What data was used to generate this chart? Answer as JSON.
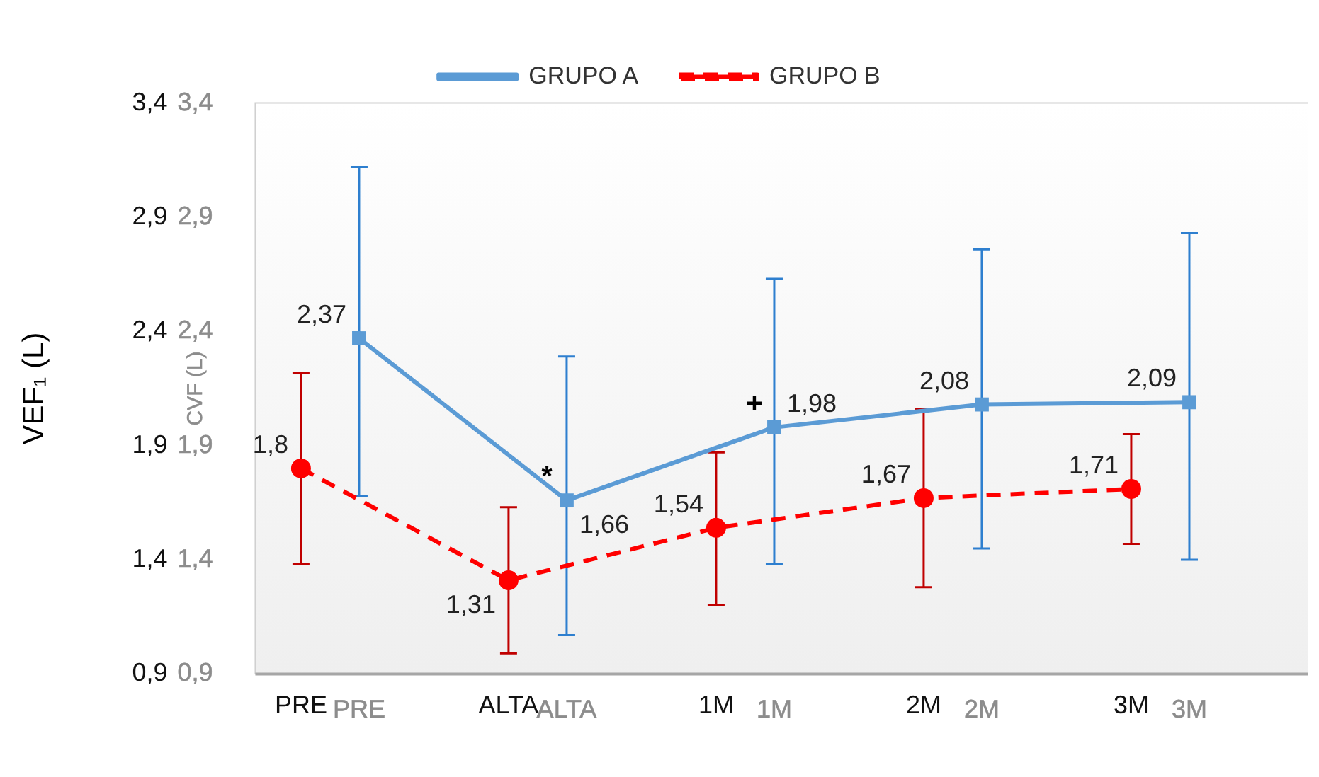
{
  "chart_data": {
    "type": "line",
    "ylabel": "VEF₁ (L)",
    "y2label": "CVF (L)",
    "categories": [
      "PRE",
      "ALTA",
      "1M",
      "2M",
      "3M"
    ],
    "series": [
      {
        "name": "GRUPO A",
        "color": "#5b9bd5",
        "marker": "square",
        "line_style": "solid",
        "values": [
          2.37,
          1.66,
          1.98,
          2.08,
          2.09
        ],
        "value_labels": [
          "2,37",
          "1,66",
          "1,98",
          "2,08",
          "2,09"
        ],
        "errors": [
          [
            1.68,
            3.12
          ],
          [
            1.07,
            2.29
          ],
          [
            1.38,
            2.63
          ],
          [
            1.45,
            2.76
          ],
          [
            1.4,
            2.83
          ]
        ]
      },
      {
        "name": "GRUPO B",
        "color": "#ff0000",
        "marker": "circle",
        "line_style": "dashed",
        "values": [
          1.8,
          1.31,
          1.54,
          1.67,
          1.71
        ],
        "value_labels": [
          "1,8",
          "1,31",
          "1,54",
          "1,67",
          "1,71"
        ],
        "errors": [
          [
            1.38,
            2.22
          ],
          [
            0.99,
            1.63
          ],
          [
            1.2,
            1.87
          ],
          [
            1.28,
            2.06
          ],
          [
            1.47,
            1.95
          ]
        ]
      }
    ],
    "ylim": [
      0.9,
      3.4
    ],
    "yticks": [
      {
        "value": 0.9,
        "label": "0,9"
      },
      {
        "value": 1.4,
        "label": "1,4"
      },
      {
        "value": 1.9,
        "label": "1,9"
      },
      {
        "value": 2.4,
        "label": "2,4"
      },
      {
        "value": 2.9,
        "label": "2,9"
      },
      {
        "value": 3.4,
        "label": "3,4"
      }
    ],
    "y2lim": [
      0.9,
      3.4
    ],
    "y2ticks": [
      {
        "value": 0.9,
        "label": "0,9"
      },
      {
        "value": 1.4,
        "label": "1,4"
      },
      {
        "value": 1.9,
        "label": "1,9"
      },
      {
        "value": 2.4,
        "label": "2,4"
      },
      {
        "value": 2.9,
        "label": "2,9"
      },
      {
        "value": 3.4,
        "label": "3,4"
      }
    ],
    "annotations": [
      {
        "text": "*",
        "x": "ALTA",
        "y": 1.66
      },
      {
        "text": "+",
        "x": "1M",
        "y": 1.98
      }
    ],
    "grid": false,
    "legend": "top"
  }
}
